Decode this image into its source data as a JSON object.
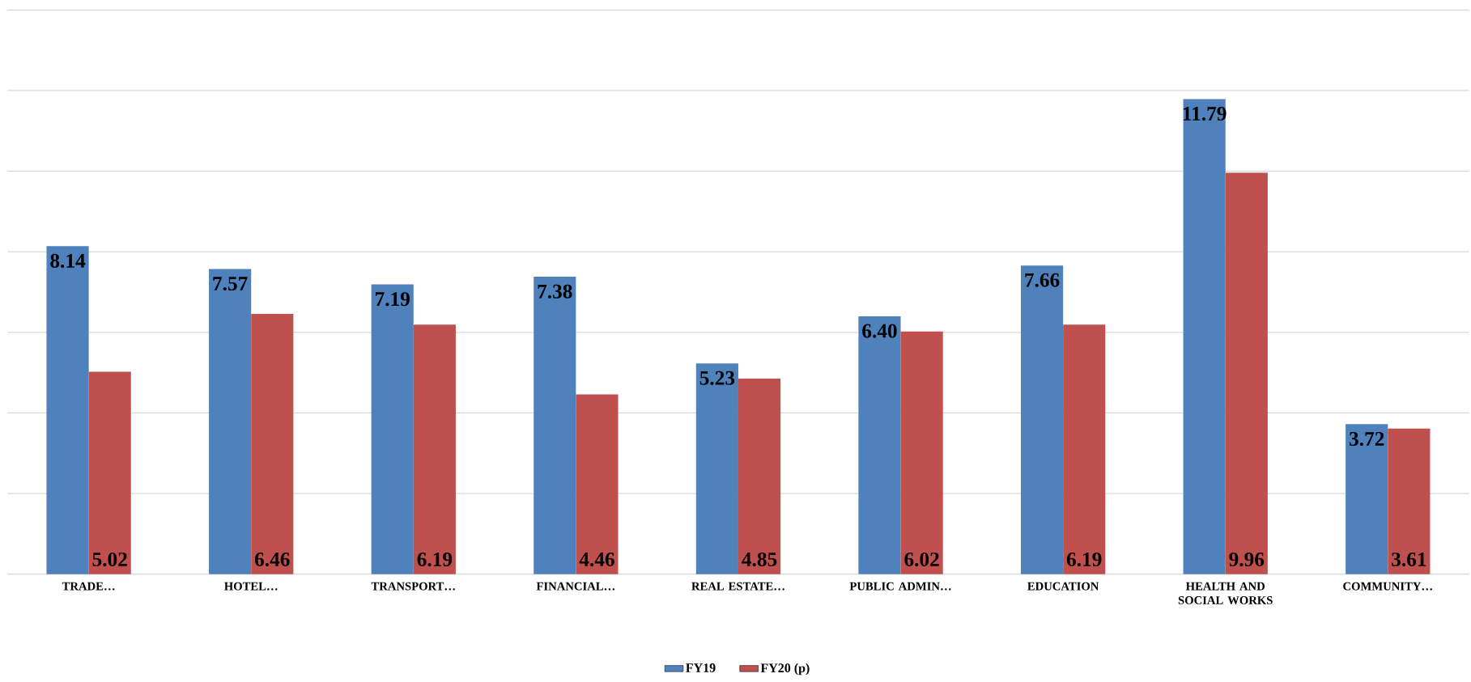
{
  "chart_data": {
    "type": "bar",
    "categories": [
      "TRADE…",
      "HOTEL…",
      "TRANSPORT…",
      "FINANCIAL…",
      "REAL ESTATE…",
      "PUBLIC ADMIN…",
      "EDUCATION",
      "HEALTH AND SOCIAL WORKS",
      "COMMUNITY…"
    ],
    "series": [
      {
        "name": "FY19",
        "color": "#4f81bd",
        "values": [
          8.14,
          7.57,
          7.19,
          7.38,
          5.23,
          6.4,
          7.66,
          11.79,
          3.72
        ],
        "value_labels": [
          "8.14",
          "7.57",
          "7.19",
          "7.38",
          "5.23",
          "6.40",
          "7.66",
          "11.79",
          "3.72"
        ]
      },
      {
        "name": "FY20 (p)",
        "color": "#c0504d",
        "values": [
          5.02,
          6.46,
          6.19,
          4.46,
          4.85,
          6.02,
          6.19,
          9.96,
          3.61
        ],
        "value_labels": [
          "5.02",
          "6.46",
          "6.19",
          "4.46",
          "4.85",
          "6.02",
          "6.19",
          "9.96",
          "3.61"
        ]
      }
    ],
    "ylim": [
      0,
      14
    ],
    "yticks": [
      {
        "value": 0,
        "label": null
      },
      {
        "value": 2,
        "label": null
      },
      {
        "value": 4,
        "label": null
      },
      {
        "value": 6,
        "label": null
      },
      {
        "value": 8,
        "label": null
      },
      {
        "value": 10,
        "label": null
      },
      {
        "value": 12,
        "label": null
      },
      {
        "value": 14,
        "label": null
      }
    ],
    "grid": "y",
    "legend": "bottom"
  }
}
